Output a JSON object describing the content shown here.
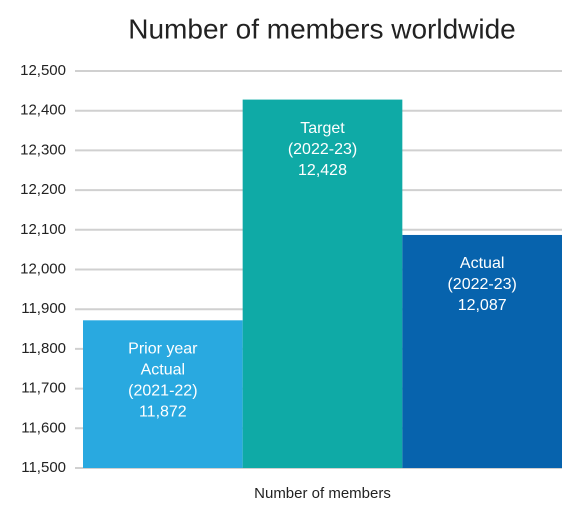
{
  "chart_data": {
    "type": "bar",
    "title": "Number of members worldwide",
    "categories": [
      "Number of members"
    ],
    "series": [
      {
        "name": [
          "Prior year",
          "Actual",
          "(2021-22)"
        ],
        "color": "#29a9e0",
        "values": [
          11872
        ],
        "value_labels": [
          "11,872"
        ]
      },
      {
        "name": [
          "Target",
          "(2022-23)"
        ],
        "color": "#0faaa6",
        "values": [
          12428
        ],
        "value_labels": [
          "12,428"
        ]
      },
      {
        "name": [
          "Actual",
          "(2022-23)"
        ],
        "color": "#0763ad",
        "values": [
          12087
        ],
        "value_labels": [
          "12,087"
        ]
      }
    ],
    "ylim": [
      11500,
      12500
    ],
    "yticks": [
      {
        "value": 11500,
        "label": "11,500"
      },
      {
        "value": 11600,
        "label": "11,600"
      },
      {
        "value": 11700,
        "label": "11,700"
      },
      {
        "value": 11800,
        "label": "11,800"
      },
      {
        "value": 11900,
        "label": "11,900"
      },
      {
        "value": 12000,
        "label": "12,000"
      },
      {
        "value": 12100,
        "label": "12,100"
      },
      {
        "value": 12200,
        "label": "12,200"
      },
      {
        "value": 12300,
        "label": "12,300"
      },
      {
        "value": 12400,
        "label": "12,400"
      },
      {
        "value": 12500,
        "label": "12,500"
      }
    ],
    "grid": true
  }
}
